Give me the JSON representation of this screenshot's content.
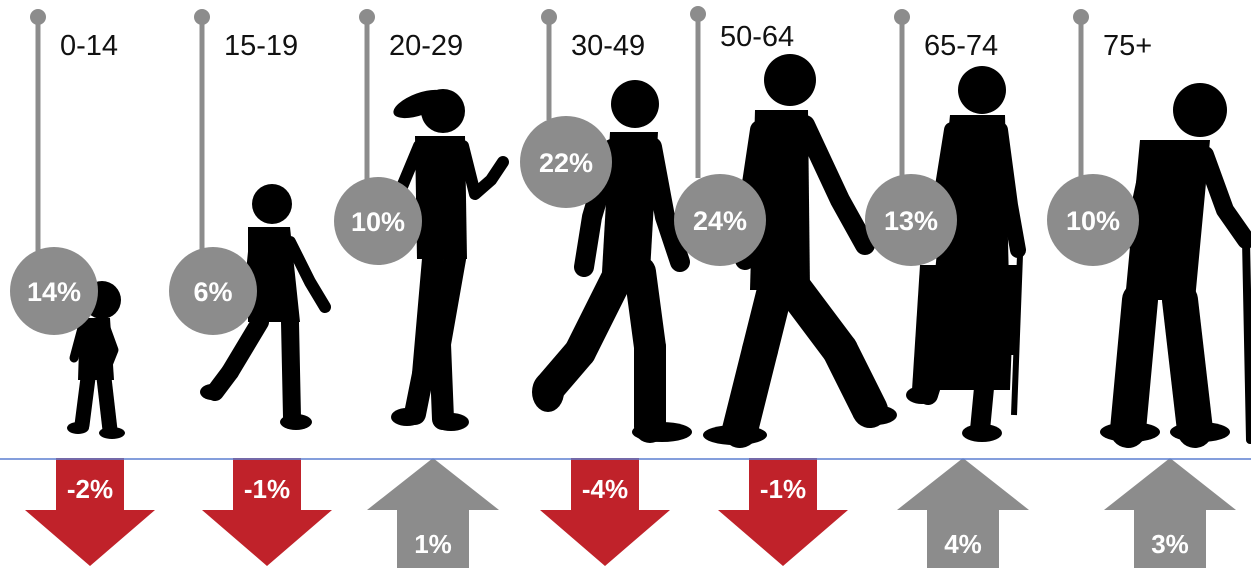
{
  "colors": {
    "bubble": "#8c8c8c",
    "connector": "#8c8c8c",
    "silhouette": "#000000",
    "decline": "#c0222a",
    "increase": "#8c8c8c",
    "baseline": "#5b7fd1"
  },
  "groups": [
    {
      "age": "0-14",
      "share": "14%",
      "share_value": 14,
      "change": "-2%",
      "change_value": -2,
      "direction": "down",
      "figure": "toddler-silhouette-icon"
    },
    {
      "age": "15-19",
      "share": "6%",
      "share_value": 6,
      "change": "-1%",
      "change_value": -1,
      "direction": "down",
      "figure": "child-silhouette-icon"
    },
    {
      "age": "20-29",
      "share": "10%",
      "share_value": 10,
      "change": "1%",
      "change_value": 1,
      "direction": "up",
      "figure": "young-woman-silhouette-icon"
    },
    {
      "age": "30-49",
      "share": "22%",
      "share_value": 22,
      "change": "-4%",
      "change_value": -4,
      "direction": "down",
      "figure": "adult-man-silhouette-icon"
    },
    {
      "age": "50-64",
      "share": "24%",
      "share_value": 24,
      "change": "-1%",
      "change_value": -1,
      "direction": "down",
      "figure": "middle-aged-man-silhouette-icon"
    },
    {
      "age": "65-74",
      "share": "13%",
      "share_value": 13,
      "change": "4%",
      "change_value": 4,
      "direction": "up",
      "figure": "older-woman-silhouette-icon"
    },
    {
      "age": "75+",
      "share": "10%",
      "share_value": 10,
      "change": "3%",
      "change_value": 3,
      "direction": "up",
      "figure": "elderly-man-with-cane-silhouette-icon"
    }
  ]
}
